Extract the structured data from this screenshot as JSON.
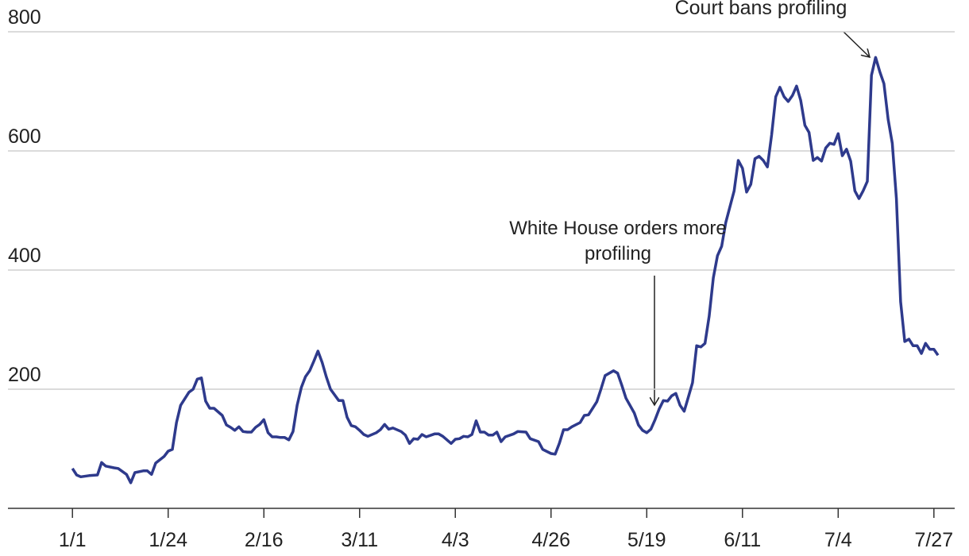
{
  "chart_data": {
    "type": "line",
    "annotations": [
      "Court bans profiling",
      "White House orders more profiling"
    ],
    "x": [
      0,
      1,
      2,
      4,
      6,
      7,
      8,
      10,
      11,
      13,
      14,
      15,
      17,
      18,
      19,
      20,
      22,
      23,
      24,
      25,
      26,
      28,
      29,
      30,
      31,
      32,
      33,
      34,
      36,
      37,
      38,
      39,
      40,
      41,
      42,
      43,
      44,
      45,
      46,
      47,
      48,
      49,
      50,
      51,
      52,
      53,
      54,
      55,
      56,
      57,
      58,
      59,
      60,
      61,
      62,
      64,
      65,
      66,
      67,
      68,
      69,
      70,
      71,
      73,
      74,
      75,
      76,
      77,
      79,
      80,
      81,
      82,
      83,
      84,
      85,
      87,
      88,
      89,
      91,
      92,
      93,
      94,
      95,
      96,
      97,
      98,
      99,
      100,
      101,
      102,
      103,
      104,
      106,
      107,
      109,
      110,
      112,
      113,
      115,
      116,
      117,
      118,
      119,
      120,
      122,
      123,
      124,
      126,
      127,
      128,
      130,
      131,
      132,
      133,
      135,
      136,
      137,
      138,
      139,
      140,
      141,
      142,
      143,
      144,
      145,
      146,
      147,
      148,
      149,
      150,
      151,
      152,
      153,
      154,
      155,
      156,
      157,
      159,
      160,
      161,
      162,
      163,
      164,
      165,
      166,
      167,
      168,
      169,
      170,
      171,
      172,
      173,
      174,
      175,
      176,
      177,
      178,
      179,
      180,
      181,
      182,
      183,
      184,
      185,
      186,
      187,
      188,
      189,
      190,
      191,
      192,
      193,
      194,
      195,
      196,
      197,
      198,
      199,
      200,
      201,
      202,
      203,
      204,
      205,
      206,
      207,
      208
    ],
    "values": [
      67,
      56,
      53,
      55,
      56,
      77,
      71,
      68,
      67,
      57,
      43,
      60,
      63,
      63,
      57,
      76,
      87,
      96,
      99,
      144,
      173,
      195,
      200,
      217,
      219,
      180,
      168,
      168,
      156,
      140,
      136,
      131,
      137,
      129,
      128,
      128,
      136,
      141,
      149,
      127,
      120,
      120,
      119,
      119,
      115,
      129,
      173,
      203,
      221,
      231,
      247,
      264,
      245,
      221,
      200,
      181,
      181,
      153,
      139,
      137,
      131,
      124,
      121,
      127,
      132,
      141,
      133,
      135,
      129,
      123,
      109,
      117,
      116,
      124,
      120,
      125,
      125,
      121,
      109,
      116,
      117,
      121,
      120,
      124,
      147,
      128,
      128,
      123,
      123,
      128,
      112,
      120,
      125,
      129,
      128,
      117,
      112,
      99,
      92,
      91,
      109,
      132,
      132,
      137,
      144,
      156,
      157,
      179,
      200,
      223,
      231,
      227,
      207,
      185,
      160,
      140,
      131,
      127,
      133,
      149,
      167,
      181,
      180,
      189,
      193,
      173,
      163,
      187,
      211,
      273,
      271,
      277,
      323,
      387,
      424,
      440,
      480,
      533,
      584,
      571,
      531,
      544,
      587,
      591,
      584,
      573,
      627,
      691,
      707,
      691,
      683,
      693,
      709,
      685,
      643,
      631,
      584,
      589,
      583,
      605,
      613,
      611,
      629,
      592,
      603,
      583,
      533,
      520,
      533,
      549,
      727,
      757,
      733,
      713,
      653,
      613,
      520,
      347,
      280,
      284,
      273,
      273,
      260,
      277,
      267,
      267,
      257
    ],
    "color": "#2e3a8c",
    "xlim": [
      -15.5,
      212
    ],
    "xticks": [
      {
        "value": 0,
        "label": "1/1"
      },
      {
        "value": 23,
        "label": "1/24"
      },
      {
        "value": 46,
        "label": "2/16"
      },
      {
        "value": 69,
        "label": "3/11"
      },
      {
        "value": 92,
        "label": "4/3"
      },
      {
        "value": 115,
        "label": "4/26"
      },
      {
        "value": 138,
        "label": "5/19"
      },
      {
        "value": 161,
        "label": "6/11"
      },
      {
        "value": 184,
        "label": "7/4"
      },
      {
        "value": 207,
        "label": "7/27"
      }
    ],
    "ylim": [
      0,
      800
    ],
    "yticks": [
      200,
      400,
      600,
      800
    ],
    "grid": true
  }
}
